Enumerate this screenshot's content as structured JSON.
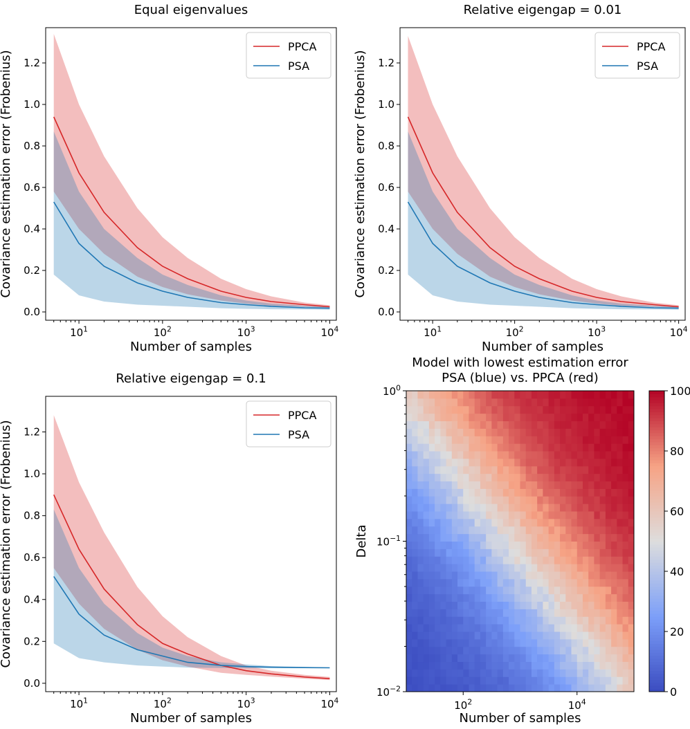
{
  "figure": {
    "xlabel": "Number of samples",
    "ylabel": "Covariance estimation error (Frobenius)",
    "line_yticks": [
      "0.0",
      "0.2",
      "0.4",
      "0.6",
      "0.8",
      "1.0",
      "1.2"
    ]
  },
  "chart_data": [
    {
      "type": "line",
      "title": "Equal eigenvalues",
      "xlabel": "Number of samples",
      "ylabel": "Covariance estimation error (Frobenius)",
      "xscale": "log",
      "xlim": [
        4,
        12000
      ],
      "ylim": [
        -0.04,
        1.37
      ],
      "xticks": [
        10,
        100,
        1000,
        10000
      ],
      "xticklabels": [
        "10^1",
        "10^2",
        "10^3",
        "10^4"
      ],
      "legend": "top-right",
      "x": [
        5,
        10,
        20,
        50,
        100,
        200,
        500,
        1000,
        2000,
        5000,
        10000
      ],
      "series": [
        {
          "name": "PPCA",
          "color": "#d62728",
          "values": [
            0.94,
            0.67,
            0.48,
            0.31,
            0.22,
            0.16,
            0.1,
            0.07,
            0.05,
            0.035,
            0.025
          ],
          "upper": [
            1.34,
            1.0,
            0.75,
            0.5,
            0.36,
            0.26,
            0.16,
            0.11,
            0.075,
            0.045,
            0.032
          ],
          "lower": [
            0.58,
            0.4,
            0.28,
            0.17,
            0.12,
            0.085,
            0.055,
            0.04,
            0.03,
            0.025,
            0.02
          ]
        },
        {
          "name": "PSA",
          "color": "#1f77b4",
          "values": [
            0.53,
            0.33,
            0.22,
            0.14,
            0.1,
            0.07,
            0.045,
            0.035,
            0.027,
            0.02,
            0.018
          ],
          "upper": [
            0.87,
            0.58,
            0.4,
            0.26,
            0.18,
            0.13,
            0.08,
            0.055,
            0.04,
            0.03,
            0.025
          ],
          "lower": [
            0.18,
            0.08,
            0.05,
            0.035,
            0.03,
            0.025,
            0.018,
            0.015,
            0.013,
            0.012,
            0.011
          ]
        }
      ]
    },
    {
      "type": "line",
      "title": "Relative eigengap = 0.01",
      "xlabel": "Number of samples",
      "ylabel": "Covariance estimation error (Frobenius)",
      "xscale": "log",
      "xlim": [
        4,
        12000
      ],
      "ylim": [
        -0.04,
        1.37
      ],
      "xticks": [
        10,
        100,
        1000,
        10000
      ],
      "xticklabels": [
        "10^1",
        "10^2",
        "10^3",
        "10^4"
      ],
      "legend": "top-right",
      "x": [
        5,
        10,
        20,
        50,
        100,
        200,
        500,
        1000,
        2000,
        5000,
        10000
      ],
      "series": [
        {
          "name": "PPCA",
          "color": "#d62728",
          "values": [
            0.94,
            0.67,
            0.48,
            0.31,
            0.22,
            0.16,
            0.1,
            0.07,
            0.05,
            0.035,
            0.025
          ],
          "upper": [
            1.33,
            1.0,
            0.75,
            0.5,
            0.36,
            0.26,
            0.16,
            0.11,
            0.075,
            0.045,
            0.032
          ],
          "lower": [
            0.58,
            0.4,
            0.28,
            0.17,
            0.12,
            0.085,
            0.055,
            0.04,
            0.03,
            0.025,
            0.02
          ]
        },
        {
          "name": "PSA",
          "color": "#1f77b4",
          "values": [
            0.53,
            0.33,
            0.22,
            0.14,
            0.1,
            0.07,
            0.045,
            0.035,
            0.027,
            0.02,
            0.018
          ],
          "upper": [
            0.87,
            0.58,
            0.4,
            0.26,
            0.18,
            0.13,
            0.08,
            0.055,
            0.04,
            0.03,
            0.025
          ],
          "lower": [
            0.18,
            0.08,
            0.05,
            0.035,
            0.03,
            0.025,
            0.018,
            0.015,
            0.013,
            0.012,
            0.011
          ]
        }
      ]
    },
    {
      "type": "line",
      "title": "Relative eigengap = 0.1",
      "xlabel": "Number of samples",
      "ylabel": "Covariance estimation error (Frobenius)",
      "xscale": "log",
      "xlim": [
        4,
        12000
      ],
      "ylim": [
        -0.04,
        1.37
      ],
      "xticks": [
        10,
        100,
        1000,
        10000
      ],
      "xticklabels": [
        "10^1",
        "10^2",
        "10^3",
        "10^4"
      ],
      "legend": "top-right",
      "x": [
        5,
        10,
        20,
        50,
        100,
        200,
        500,
        1000,
        2000,
        5000,
        10000
      ],
      "series": [
        {
          "name": "PPCA",
          "color": "#d62728",
          "values": [
            0.9,
            0.64,
            0.45,
            0.28,
            0.19,
            0.14,
            0.085,
            0.06,
            0.045,
            0.03,
            0.022
          ],
          "upper": [
            1.28,
            0.96,
            0.72,
            0.46,
            0.32,
            0.22,
            0.13,
            0.085,
            0.06,
            0.04,
            0.03
          ],
          "lower": [
            0.55,
            0.38,
            0.26,
            0.16,
            0.11,
            0.08,
            0.05,
            0.04,
            0.032,
            0.022,
            0.015
          ]
        },
        {
          "name": "PSA",
          "color": "#1f77b4",
          "values": [
            0.51,
            0.33,
            0.23,
            0.16,
            0.13,
            0.1,
            0.085,
            0.08,
            0.077,
            0.075,
            0.074
          ],
          "upper": [
            0.83,
            0.55,
            0.38,
            0.24,
            0.17,
            0.13,
            0.1,
            0.09,
            0.082,
            0.078,
            0.076
          ],
          "lower": [
            0.19,
            0.12,
            0.1,
            0.085,
            0.08,
            0.075,
            0.073,
            0.072,
            0.072,
            0.072,
            0.072
          ]
        }
      ]
    },
    {
      "type": "heatmap",
      "title": "Model with lowest estimation error\nPSA (blue) vs. PPCA (red)",
      "title_lines": [
        "Model with lowest estimation error",
        "PSA (blue) vs. PPCA (red)"
      ],
      "xlabel": "Number of samples",
      "ylabel": "Delta",
      "xscale": "log",
      "yscale": "log",
      "xrange": [
        10,
        100000
      ],
      "yrange": [
        0.01,
        1
      ],
      "xticks": [
        100,
        10000
      ],
      "xticklabels": [
        "10^2",
        "10^4"
      ],
      "yticks": [
        0.01,
        0.1,
        1
      ],
      "yticklabels": [
        "10^-2",
        "10^-1",
        "10^0"
      ],
      "grid_size": [
        40,
        40
      ],
      "boundary": "percentage of runs where PPCA wins ≈ 50% along delta ≈ 2.5 / sqrt(samples); red (100) above-right, blue (0) below-left",
      "colorbar": {
        "cmap": "coolwarm",
        "range": [
          0,
          100
        ],
        "ticks": [
          0,
          20,
          40,
          60,
          80,
          100
        ]
      }
    }
  ]
}
